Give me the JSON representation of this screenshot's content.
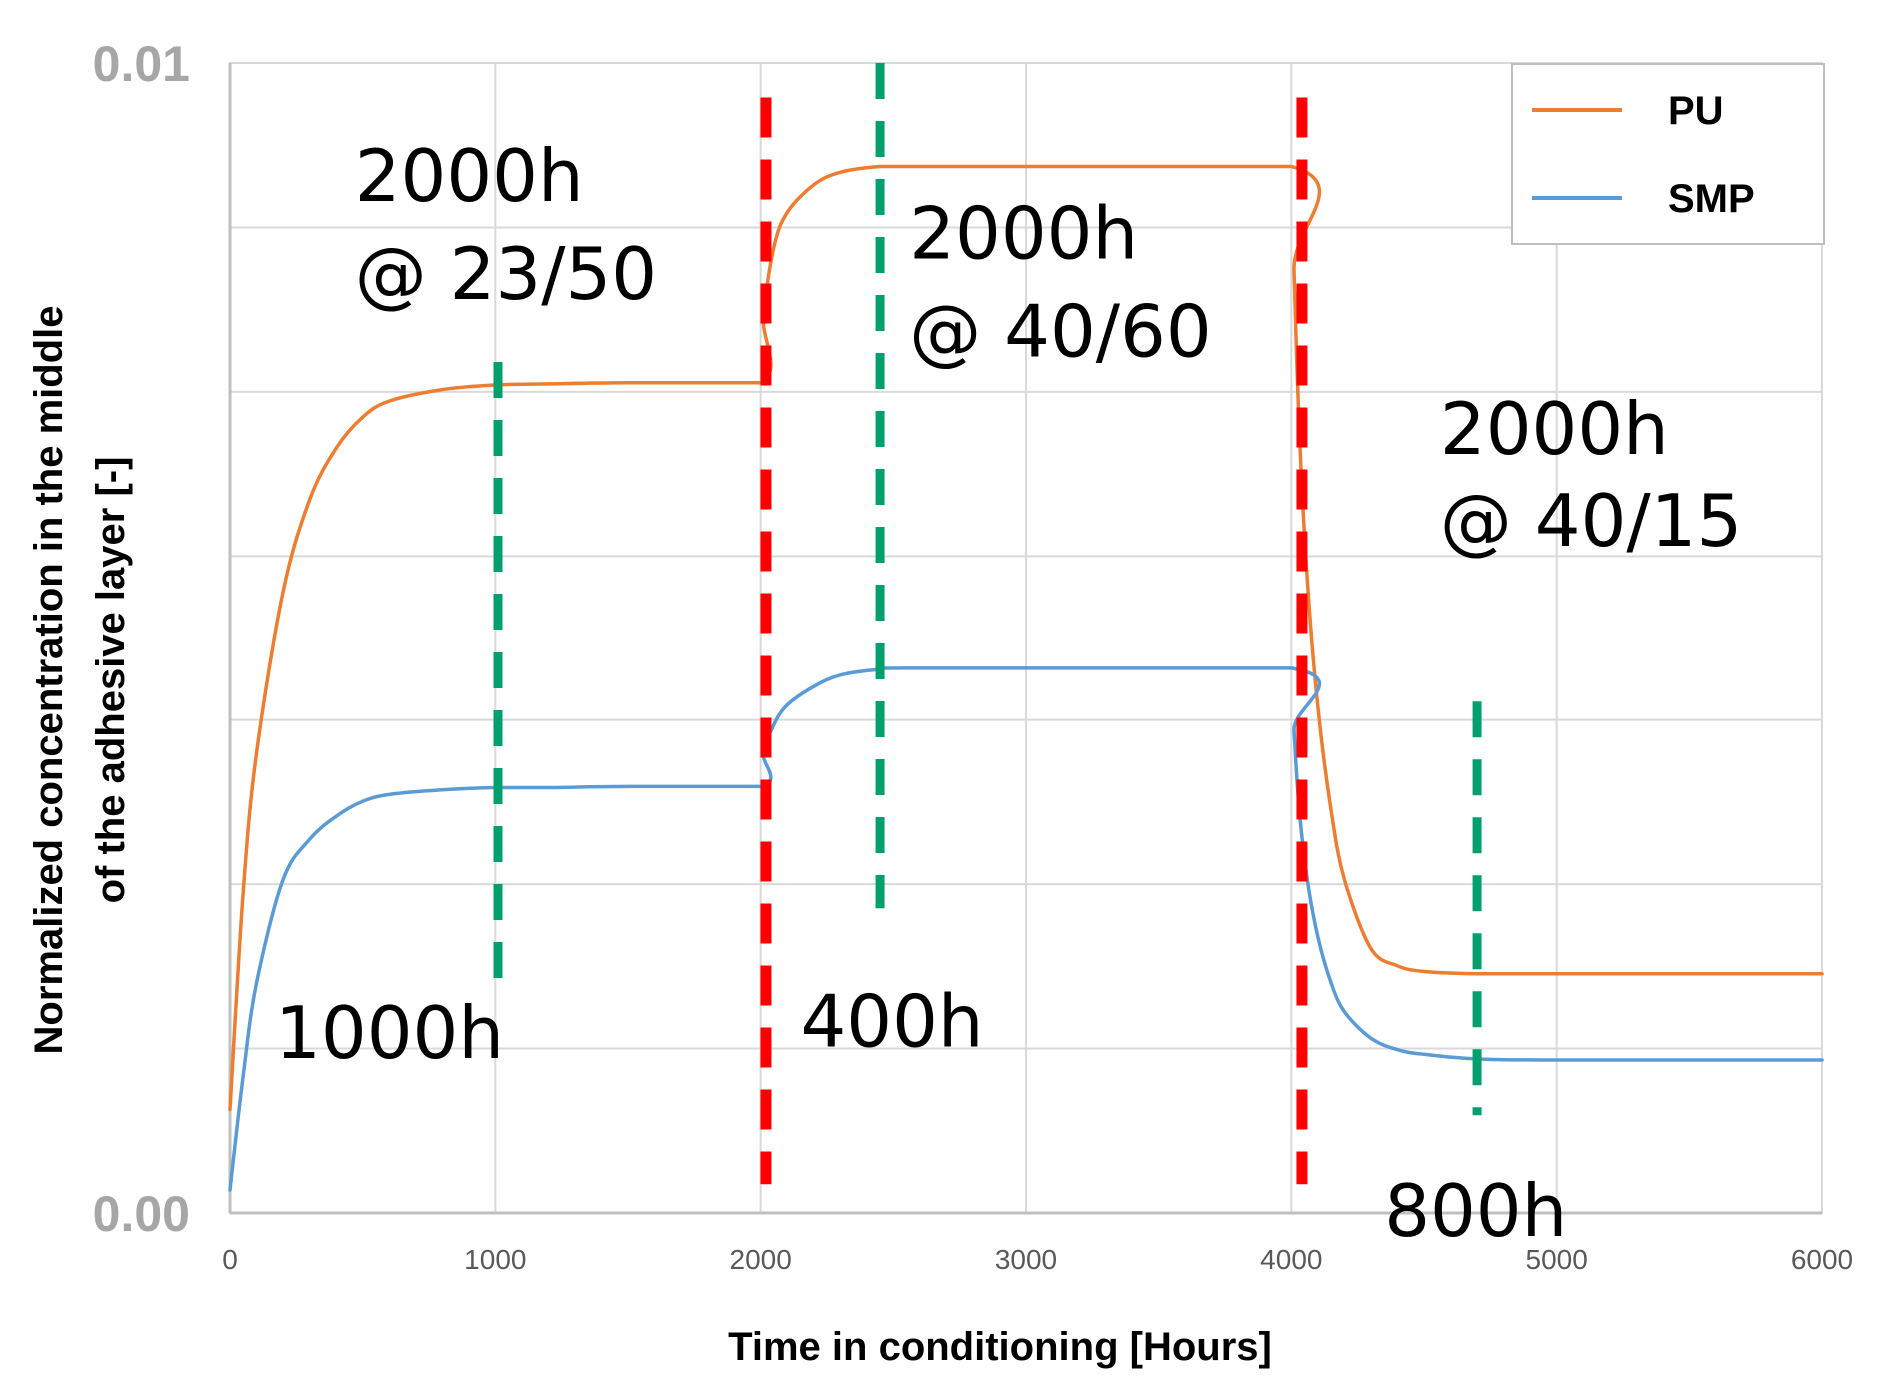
{
  "chart_data": {
    "type": "line",
    "title": "",
    "xlabel": "Time in conditioning [Hours]",
    "ylabel_lines": [
      "Normalized concentration in the middle",
      "of the adhesive layer [-]"
    ],
    "xlim": [
      0,
      6000
    ],
    "ylim": [
      0,
      0.01
    ],
    "x_ticks": [
      0,
      1000,
      2000,
      3000,
      4000,
      5000,
      6000
    ],
    "x_tick_labels": [
      "0",
      "1000",
      "2000",
      "3000",
      "4000",
      "5000",
      "6000"
    ],
    "y_grid_values": [
      0,
      0.00143,
      0.00286,
      0.00429,
      0.00571,
      0.00714,
      0.00857,
      0.01
    ],
    "y_tick_labels": [
      {
        "value": 0,
        "label": "0.00"
      },
      {
        "value": 0.01,
        "label": "0.01"
      }
    ],
    "grid": true,
    "legend_position": "top-right",
    "series": [
      {
        "name": "PU",
        "color": "#ed7d31",
        "x": [
          0,
          50,
          100,
          200,
          300,
          400,
          500,
          600,
          800,
          1000,
          1200,
          1500,
          2000,
          2010,
          2050,
          2100,
          2200,
          2300,
          2450,
          2600,
          4000,
          4010,
          4030,
          4060,
          4100,
          4150,
          4200,
          4300,
          4400,
          4500,
          4700,
          5000,
          6000
        ],
        "values": [
          0.0009,
          0.0028,
          0.004,
          0.0054,
          0.0062,
          0.00665,
          0.00692,
          0.00706,
          0.00716,
          0.0072,
          0.00721,
          0.00722,
          0.00722,
          0.0078,
          0.0084,
          0.0087,
          0.00894,
          0.00905,
          0.0091,
          0.0091,
          0.0091,
          0.0082,
          0.0068,
          0.0055,
          0.0044,
          0.0035,
          0.0029,
          0.0023,
          0.00215,
          0.0021,
          0.00208,
          0.00208,
          0.00208
        ]
      },
      {
        "name": "SMP",
        "color": "#5b9bd5",
        "x": [
          0,
          50,
          100,
          200,
          300,
          400,
          500,
          600,
          800,
          1000,
          1200,
          1500,
          2000,
          2010,
          2050,
          2100,
          2200,
          2300,
          2450,
          2600,
          4000,
          4010,
          4030,
          4060,
          4100,
          4150,
          4200,
          4300,
          4400,
          4500,
          4700,
          5000,
          6000
        ],
        "values": [
          0.0002,
          0.0012,
          0.002,
          0.0029,
          0.00325,
          0.00345,
          0.00358,
          0.00364,
          0.00368,
          0.0037,
          0.0037,
          0.00371,
          0.00371,
          0.004,
          0.00425,
          0.00442,
          0.00458,
          0.00468,
          0.00473,
          0.00474,
          0.00474,
          0.0042,
          0.0035,
          0.0029,
          0.0024,
          0.002,
          0.00175,
          0.00152,
          0.00142,
          0.00138,
          0.00134,
          0.00133,
          0.00133
        ]
      }
    ],
    "vertical_markers": [
      {
        "x": 2020,
        "y_from": 0.00025,
        "y_to": 0.0097,
        "color": "#ff0000",
        "style": "red-dash"
      },
      {
        "x": 4040,
        "y_from": 0.00025,
        "y_to": 0.0097,
        "color": "#ff0000",
        "style": "red-dash"
      },
      {
        "x": 1010,
        "y_from": 0.0019,
        "y_to": 0.0074,
        "color": "#00a06e",
        "style": "green-dash"
      },
      {
        "x": 2450,
        "y_from": 0.00265,
        "y_to": 0.01,
        "color": "#00a06e",
        "style": "green-dash"
      },
      {
        "x": 4700,
        "y_from": 0.00085,
        "y_to": 0.00445,
        "color": "#00a06e",
        "style": "green-dash"
      }
    ],
    "annotations": [
      {
        "text": "2000h",
        "x": 470,
        "y": 0.0088
      },
      {
        "text": "@ 23/50",
        "x": 470,
        "y": 0.00795
      },
      {
        "text": "2000h",
        "x": 2560,
        "y": 0.0083
      },
      {
        "text": "@ 40/60",
        "x": 2560,
        "y": 0.00745
      },
      {
        "text": "2000h",
        "x": 4560,
        "y": 0.0066
      },
      {
        "text": "@ 40/15",
        "x": 4560,
        "y": 0.0058
      },
      {
        "text": "1000h",
        "x": 170,
        "y": 0.00135
      },
      {
        "text": "400h",
        "x": 2150,
        "y": 0.00145
      },
      {
        "text": "800h",
        "x": 4350,
        "y": -0.0002
      }
    ]
  }
}
